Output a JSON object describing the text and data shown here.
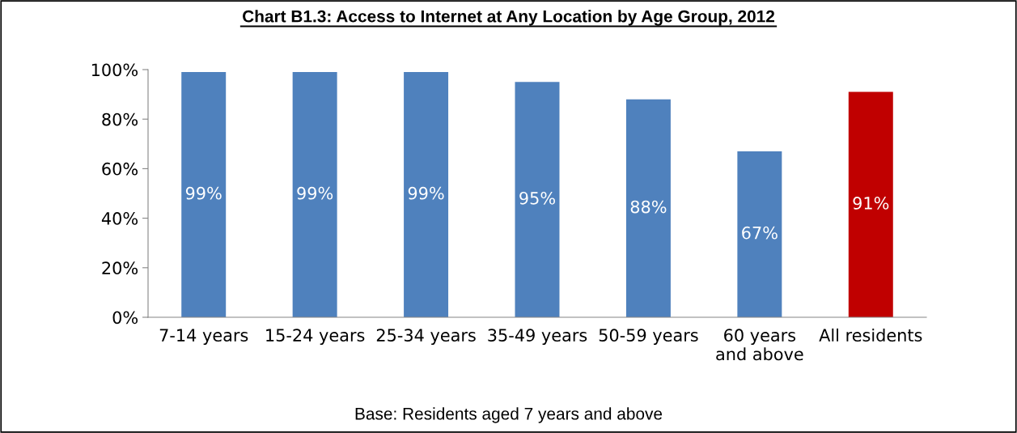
{
  "chart_data": {
    "type": "bar",
    "title": "Chart B1.3: Access to Internet at Any Location by Age Group, 2012",
    "categories": [
      "7-14 years",
      "15-24 years",
      "25-34 years",
      "35-49 years",
      "50-59 years",
      "60 years\nand above",
      "All residents"
    ],
    "values": [
      99,
      99,
      99,
      95,
      88,
      67,
      91
    ],
    "colors": [
      "#4f81bd",
      "#4f81bd",
      "#4f81bd",
      "#4f81bd",
      "#4f81bd",
      "#4f81bd",
      "#c00000"
    ],
    "value_labels": [
      "99%",
      "99%",
      "99%",
      "95%",
      "88%",
      "67%",
      "91%"
    ],
    "ylim": [
      0,
      100
    ],
    "yticks": [
      {
        "value": 0,
        "label": "0%"
      },
      {
        "value": 20,
        "label": "20%"
      },
      {
        "value": 40,
        "label": "40%"
      },
      {
        "value": 60,
        "label": "60%"
      },
      {
        "value": 80,
        "label": "80%"
      },
      {
        "value": 100,
        "label": "100%"
      }
    ],
    "grid": false,
    "annotations": [
      "Base: Residents aged 7 years and above"
    ]
  }
}
